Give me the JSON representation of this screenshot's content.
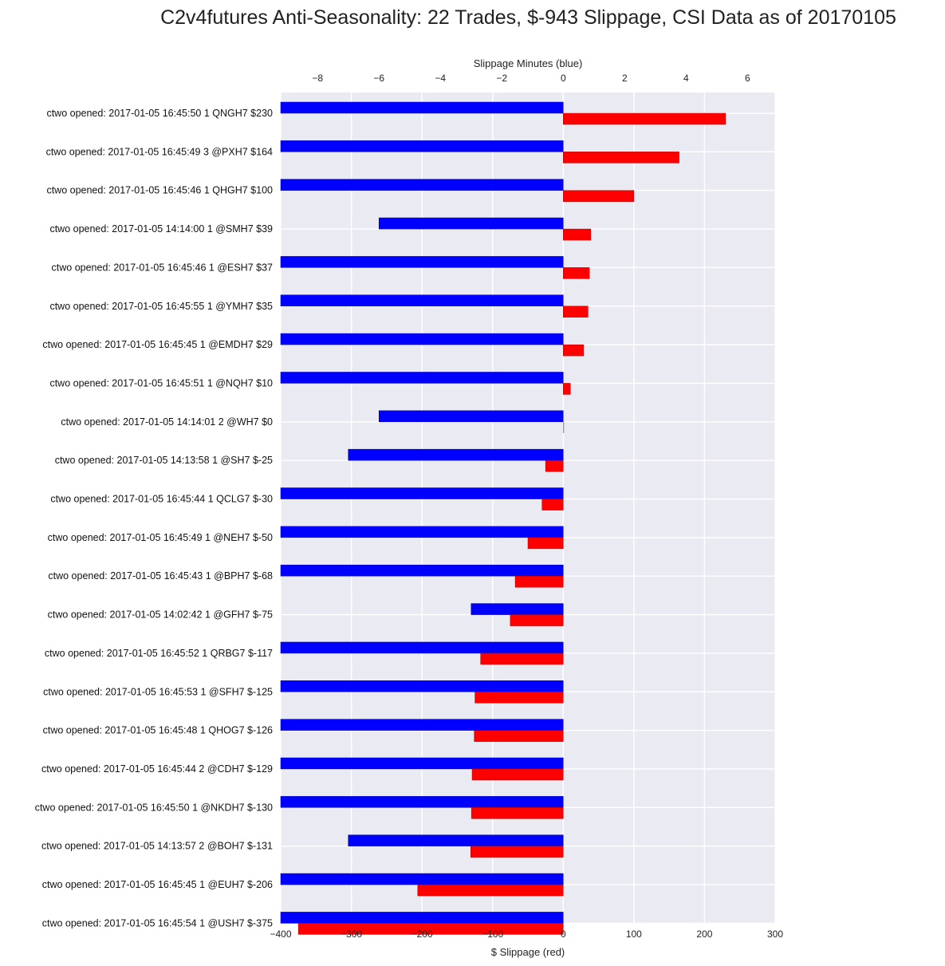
{
  "chart_data": {
    "type": "bar",
    "title": "C2v4futures Anti-Seasonality: 22 Trades, $-943 Slippage, CSI Data as of 20170105",
    "xlabel_bottom": "$ Slippage (red)",
    "xlabel_top": "Slippage Minutes (blue)",
    "xlim_bottom": [
      -400,
      300
    ],
    "xticks_bottom": [
      -400,
      -300,
      -200,
      -100,
      0,
      100,
      200,
      300
    ],
    "xlim_top": [
      -9.2,
      6.9
    ],
    "xticks_top": [
      -8,
      -6,
      -4,
      -2,
      0,
      2,
      4,
      6
    ],
    "xtick_labels_top": [
      "−8",
      "−6",
      "−4",
      "−2",
      "0",
      "2",
      "4",
      "6"
    ],
    "xtick_labels_bottom": [
      "−400",
      "−300",
      "−200",
      "−100",
      "0",
      "100",
      "200",
      "300"
    ],
    "grid": true,
    "categories": [
      "ctwo opened: 2017-01-05 16:45:50 1 QNGH7 $230",
      "ctwo opened: 2017-01-05 16:45:49 3 @PXH7 $164",
      "ctwo opened: 2017-01-05 16:45:46 1 QHGH7 $100",
      "ctwo opened: 2017-01-05 14:14:00 1 @SMH7 $39",
      "ctwo opened: 2017-01-05 16:45:46 1 @ESH7 $37",
      "ctwo opened: 2017-01-05 16:45:55 1 @YMH7 $35",
      "ctwo opened: 2017-01-05 16:45:45 1 @EMDH7 $29",
      "ctwo opened: 2017-01-05 16:45:51 1 @NQH7 $10",
      "ctwo opened: 2017-01-05 14:14:01 2 @WH7 $0",
      "ctwo opened: 2017-01-05 14:13:58 1 @SH7 $-25",
      "ctwo opened: 2017-01-05 16:45:44 1 QCLG7 $-30",
      "ctwo opened: 2017-01-05 16:45:49 1 @NEH7 $-50",
      "ctwo opened: 2017-01-05 16:45:43 1 @BPH7 $-68",
      "ctwo opened: 2017-01-05 14:02:42 1 @GFH7 $-75",
      "ctwo opened: 2017-01-05 16:45:52 1 QRBG7 $-117",
      "ctwo opened: 2017-01-05 16:45:53 1 @SFH7 $-125",
      "ctwo opened: 2017-01-05 16:45:48 1 QHOG7 $-126",
      "ctwo opened: 2017-01-05 16:45:44 2 @CDH7 $-129",
      "ctwo opened: 2017-01-05 16:45:50 1 @NKDH7 $-130",
      "ctwo opened: 2017-01-05 14:13:57 2 @BOH7 $-131",
      "ctwo opened: 2017-01-05 16:45:45 1 @EUH7 $-206",
      "ctwo opened: 2017-01-05 16:45:54 1 @USH7 $-375"
    ],
    "series": [
      {
        "name": "$ Slippage (red)",
        "color": "#ff0000",
        "axis": "bottom",
        "values": [
          230,
          164,
          100,
          39,
          37,
          35,
          29,
          10,
          0,
          -25,
          -30,
          -50,
          -68,
          -75,
          -117,
          -125,
          -126,
          -129,
          -130,
          -131,
          -206,
          -375
        ]
      },
      {
        "name": "Slippage Minutes (blue)",
        "color": "#0000ff",
        "axis": "top",
        "values": [
          -9.2,
          -9.2,
          -9.2,
          -6.0,
          -9.2,
          -9.2,
          -9.2,
          -9.2,
          -6.0,
          -7.0,
          -9.2,
          -9.2,
          -9.2,
          -3.0,
          -9.2,
          -9.2,
          -9.2,
          -9.2,
          -9.2,
          -7.0,
          -9.2,
          -9.2
        ]
      }
    ]
  }
}
